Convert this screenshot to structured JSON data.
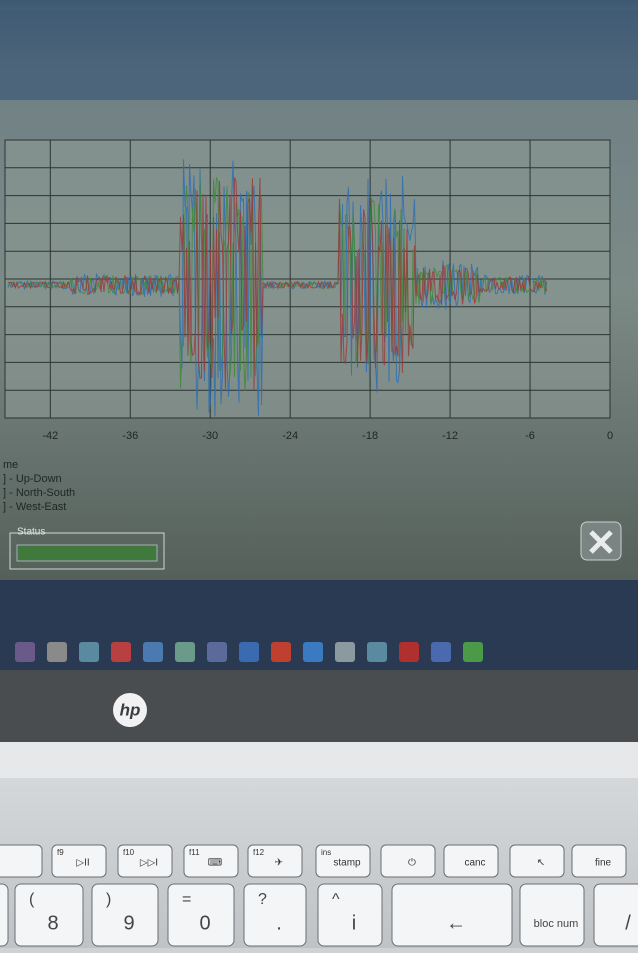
{
  "screen": {
    "chart": {
      "xlim": [
        -45.4,
        0
      ],
      "xticks": [
        -42,
        -36,
        -30,
        -24,
        -18,
        -12,
        -6,
        0
      ]
    },
    "legend": {
      "heading": "me",
      "items": [
        "] - Up-Down",
        "] - North-South",
        "] - West-East"
      ]
    },
    "status": {
      "label": "Status"
    }
  },
  "logo": "hp",
  "keyboard": {
    "fn_row": [
      {
        "fn": "f9",
        "label": "▷II"
      },
      {
        "fn": "f10",
        "label": "▷▷I"
      },
      {
        "fn": "f11",
        "label": "⌨"
      },
      {
        "fn": "f12",
        "label": "✈"
      },
      {
        "fn": "ins",
        "label": "stamp"
      },
      {
        "fn": "",
        "label": "⏻"
      },
      {
        "fn": "",
        "label": "canc"
      },
      {
        "fn": "",
        "label": "↖"
      },
      {
        "fn": "",
        "label": "fine"
      }
    ],
    "num_row": [
      {
        "top": "(",
        "label": "8"
      },
      {
        "top": ")",
        "label": "9"
      },
      {
        "top": "=",
        "label": "0"
      },
      {
        "top": "?",
        "label": "."
      },
      {
        "top": "^",
        "label": "i"
      },
      {
        "top": "",
        "label": "←"
      },
      {
        "top": "",
        "label": "bloc num"
      },
      {
        "top": "",
        "label": "/"
      }
    ]
  }
}
